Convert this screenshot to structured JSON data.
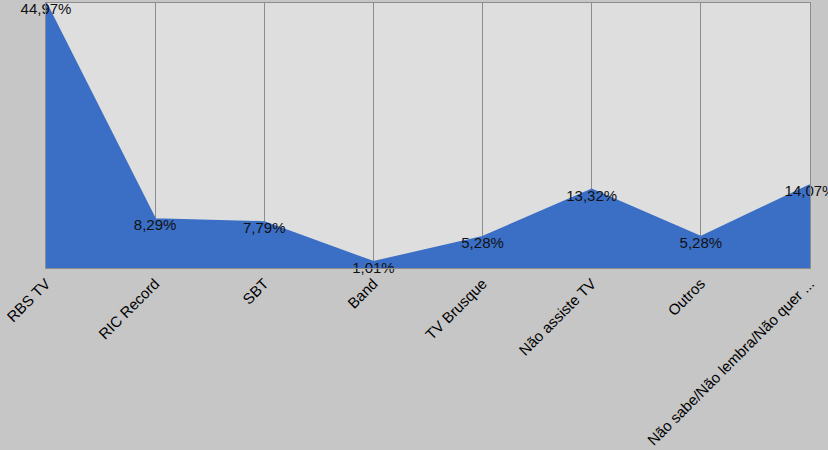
{
  "chart_data": {
    "type": "area",
    "categories": [
      "RBS TV",
      "RIC Record",
      "SBT",
      "Band",
      "TV Brusque",
      "Não assiste TV",
      "Outros",
      "Não sabe/Não lembra/Não quer ..."
    ],
    "values": [
      44.97,
      8.29,
      7.79,
      1.01,
      5.28,
      13.32,
      5.28,
      14.07
    ],
    "value_labels": [
      "44,97%",
      "8,29%",
      "7,79%",
      "1,01%",
      "5,28%",
      "13,32%",
      "5,28%",
      "14,07%"
    ],
    "data_labels": true,
    "color": "#3b6fc6",
    "ylim": [
      0,
      45
    ],
    "grid": true,
    "tick_labels": "x"
  }
}
